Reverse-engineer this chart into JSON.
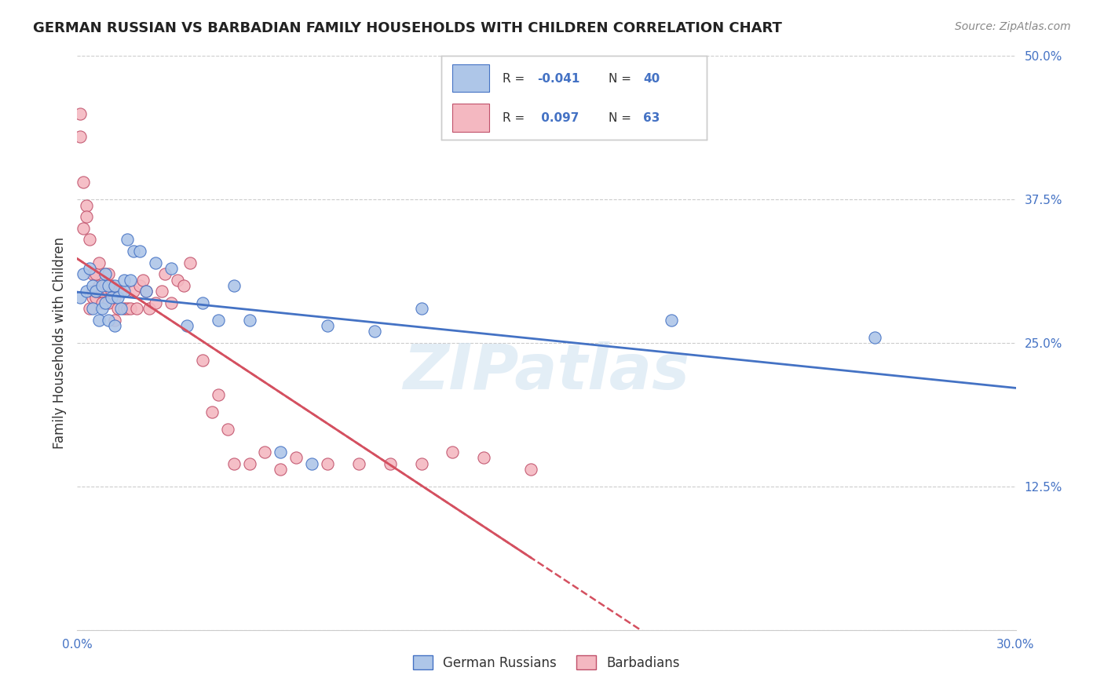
{
  "title": "GERMAN RUSSIAN VS BARBADIAN FAMILY HOUSEHOLDS WITH CHILDREN CORRELATION CHART",
  "source": "Source: ZipAtlas.com",
  "ylabel": "Family Households with Children",
  "xmin": 0.0,
  "xmax": 0.3,
  "ymin": 0.0,
  "ymax": 0.5,
  "x_ticks": [
    0.0,
    0.05,
    0.1,
    0.15,
    0.2,
    0.25,
    0.3
  ],
  "y_ticks": [
    0.0,
    0.125,
    0.25,
    0.375,
    0.5
  ],
  "blue_color": "#aec6e8",
  "blue_edge_color": "#4472c4",
  "pink_color": "#f4b8c1",
  "pink_edge_color": "#c0506a",
  "blue_line_color": "#4472c4",
  "pink_line_color": "#d45060",
  "watermark": "ZIPatlas",
  "german_russian_x": [
    0.001,
    0.002,
    0.003,
    0.004,
    0.005,
    0.005,
    0.006,
    0.007,
    0.008,
    0.008,
    0.009,
    0.009,
    0.01,
    0.01,
    0.011,
    0.012,
    0.012,
    0.013,
    0.014,
    0.015,
    0.015,
    0.016,
    0.017,
    0.018,
    0.02,
    0.022,
    0.025,
    0.03,
    0.035,
    0.04,
    0.045,
    0.05,
    0.055,
    0.065,
    0.075,
    0.08,
    0.095,
    0.11,
    0.19,
    0.255
  ],
  "german_russian_y": [
    0.29,
    0.31,
    0.295,
    0.315,
    0.3,
    0.28,
    0.295,
    0.27,
    0.3,
    0.28,
    0.31,
    0.285,
    0.3,
    0.27,
    0.29,
    0.3,
    0.265,
    0.29,
    0.28,
    0.295,
    0.305,
    0.34,
    0.305,
    0.33,
    0.33,
    0.295,
    0.32,
    0.315,
    0.265,
    0.285,
    0.27,
    0.3,
    0.27,
    0.155,
    0.145,
    0.265,
    0.26,
    0.28,
    0.27,
    0.255
  ],
  "barbadian_x": [
    0.001,
    0.001,
    0.002,
    0.002,
    0.003,
    0.003,
    0.004,
    0.004,
    0.005,
    0.005,
    0.005,
    0.006,
    0.006,
    0.006,
    0.007,
    0.007,
    0.007,
    0.008,
    0.008,
    0.009,
    0.009,
    0.01,
    0.01,
    0.01,
    0.011,
    0.011,
    0.012,
    0.012,
    0.013,
    0.013,
    0.014,
    0.015,
    0.016,
    0.017,
    0.018,
    0.019,
    0.02,
    0.021,
    0.022,
    0.023,
    0.025,
    0.027,
    0.028,
    0.03,
    0.032,
    0.034,
    0.036,
    0.04,
    0.043,
    0.045,
    0.048,
    0.05,
    0.055,
    0.06,
    0.065,
    0.07,
    0.08,
    0.09,
    0.1,
    0.11,
    0.12,
    0.13,
    0.145
  ],
  "barbadian_y": [
    0.43,
    0.45,
    0.35,
    0.39,
    0.37,
    0.36,
    0.28,
    0.34,
    0.29,
    0.31,
    0.295,
    0.31,
    0.29,
    0.295,
    0.295,
    0.32,
    0.3,
    0.295,
    0.285,
    0.31,
    0.3,
    0.295,
    0.31,
    0.285,
    0.295,
    0.3,
    0.29,
    0.27,
    0.295,
    0.28,
    0.295,
    0.28,
    0.28,
    0.28,
    0.295,
    0.28,
    0.3,
    0.305,
    0.295,
    0.28,
    0.285,
    0.295,
    0.31,
    0.285,
    0.305,
    0.3,
    0.32,
    0.235,
    0.19,
    0.205,
    0.175,
    0.145,
    0.145,
    0.155,
    0.14,
    0.15,
    0.145,
    0.145,
    0.145,
    0.145,
    0.155,
    0.15,
    0.14
  ]
}
